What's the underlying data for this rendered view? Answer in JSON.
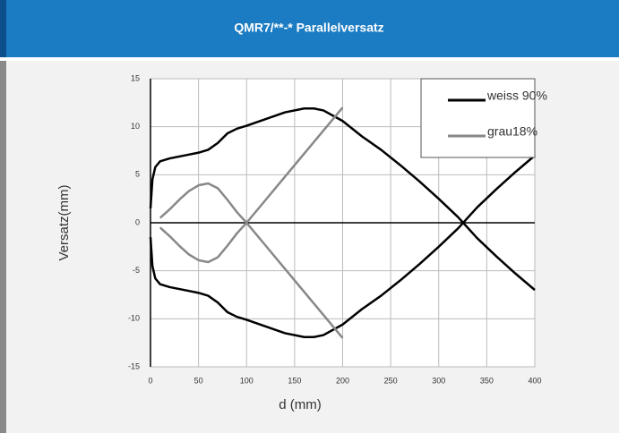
{
  "header": {
    "title": "QMR7/**-*  Parallelversatz"
  },
  "chart_data": {
    "type": "line",
    "x_label": "d (mm)",
    "y_label": "Versatz(mm)",
    "xlim": [
      0,
      400
    ],
    "xticks": [
      0,
      50,
      100,
      150,
      200,
      250,
      300,
      350,
      400
    ],
    "ylim": [
      -15,
      15
    ],
    "yticks": [
      -15,
      -10,
      -5,
      0,
      5,
      10,
      15
    ],
    "grid": true,
    "legend": "top-right",
    "series": [
      {
        "name": "weiss 90%",
        "color": "#000000",
        "x": [
          0,
          2,
          5,
          10,
          20,
          30,
          40,
          50,
          60,
          70,
          80,
          90,
          100,
          120,
          140,
          160,
          170,
          180,
          200,
          220,
          240,
          260,
          280,
          300,
          320,
          340,
          360,
          380,
          400
        ],
        "values": [
          1.5,
          4.5,
          5.8,
          6.4,
          6.7,
          6.9,
          7.1,
          7.3,
          7.6,
          8.3,
          9.3,
          9.8,
          10.1,
          10.8,
          11.5,
          11.9,
          11.9,
          11.7,
          10.6,
          9.0,
          7.6,
          6.0,
          4.3,
          2.5,
          0.6,
          -1.6,
          -3.5,
          -5.3,
          -7.0
        ],
        "values_mirror": [
          -1.5,
          -4.5,
          -5.8,
          -6.4,
          -6.7,
          -6.9,
          -7.1,
          -7.3,
          -7.6,
          -8.3,
          -9.3,
          -9.8,
          -10.1,
          -10.8,
          -11.5,
          -11.9,
          -11.9,
          -11.7,
          -10.6,
          -9.0,
          -7.6,
          -6.0,
          -4.3,
          -2.5,
          -0.6,
          1.6,
          3.5,
          5.3,
          7.0
        ]
      },
      {
        "name": "grau18%",
        "color": "#888888",
        "x": [
          10,
          20,
          30,
          40,
          50,
          60,
          70,
          80,
          90,
          100,
          120,
          140,
          160,
          180,
          200
        ],
        "values": [
          0.5,
          1.4,
          2.4,
          3.3,
          3.9,
          4.1,
          3.6,
          2.4,
          1.1,
          0,
          2.4,
          4.8,
          7.2,
          9.6,
          12.0
        ],
        "values_mirror": [
          -0.5,
          -1.4,
          -2.4,
          -3.3,
          -3.9,
          -4.1,
          -3.6,
          -2.4,
          -1.1,
          0,
          -2.4,
          -4.8,
          -7.2,
          -9.6,
          -12.0
        ]
      }
    ]
  }
}
